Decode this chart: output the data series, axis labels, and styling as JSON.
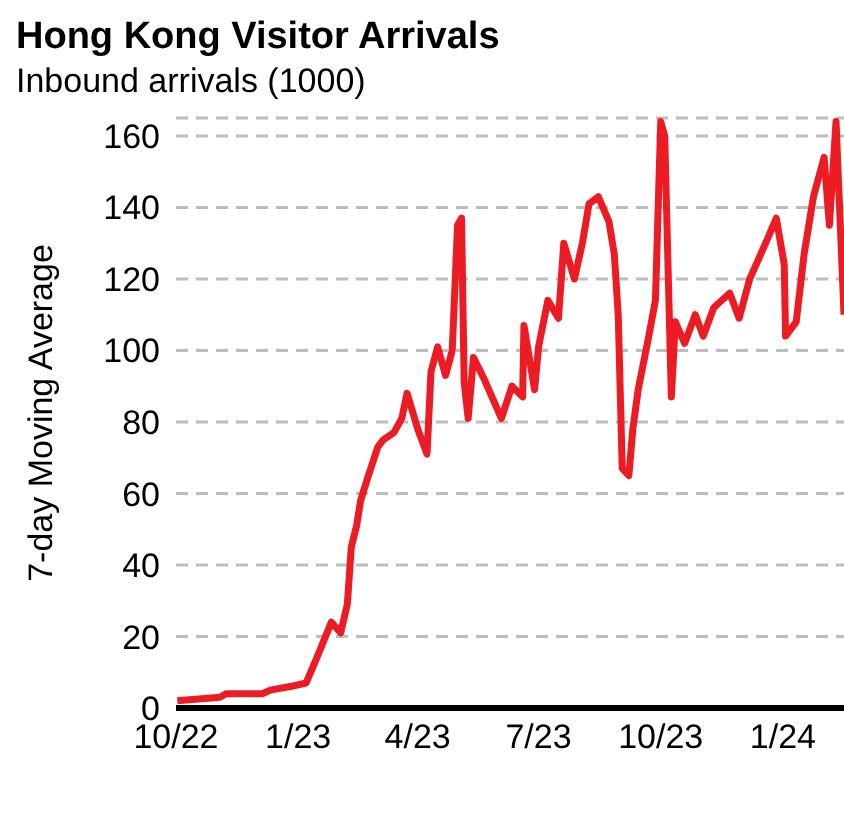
{
  "chart_data": {
    "type": "line",
    "title": "Hong Kong Visitor Arrivals",
    "subtitle": "Inbound arrivals (1000)",
    "ylabel": "7-day Moving Average",
    "x": [
      "2022-10-02",
      "2022-11-03",
      "2022-11-08",
      "2022-12-05",
      "2022-12-11",
      "2022-12-26",
      "2023-01-07",
      "2023-01-15",
      "2023-01-26",
      "2023-02-02",
      "2023-02-07",
      "2023-02-10",
      "2023-02-14",
      "2023-02-17",
      "2023-02-22",
      "2023-03-02",
      "2023-03-06",
      "2023-03-14",
      "2023-03-20",
      "2023-03-24",
      "2023-04-01",
      "2023-04-08",
      "2023-04-11",
      "2023-04-16",
      "2023-04-22",
      "2023-04-27",
      "2023-05-01",
      "2023-05-04",
      "2023-05-06",
      "2023-05-09",
      "2023-05-13",
      "2023-05-21",
      "2023-06-03",
      "2023-06-11",
      "2023-06-19",
      "2023-06-20",
      "2023-06-28",
      "2023-07-01",
      "2023-07-08",
      "2023-07-16",
      "2023-07-20",
      "2023-07-28",
      "2023-08-03",
      "2023-08-08",
      "2023-08-15",
      "2023-08-23",
      "2023-08-27",
      "2023-08-30",
      "2023-09-02",
      "2023-09-07",
      "2023-09-10",
      "2023-09-14",
      "2023-09-22",
      "2023-09-27",
      "2023-10-01",
      "2023-10-04",
      "2023-10-09",
      "2023-10-12",
      "2023-10-19",
      "2023-10-27",
      "2023-11-02",
      "2023-11-10",
      "2023-11-22",
      "2023-11-29",
      "2023-12-07",
      "2023-12-19",
      "2023-12-27",
      "2024-01-02",
      "2024-01-03",
      "2024-01-11",
      "2024-01-17",
      "2024-01-24",
      "2024-02-01",
      "2024-02-05",
      "2024-02-10",
      "2024-02-16"
    ],
    "series": [
      {
        "color": "#ed1c24",
        "values": [
          2,
          3,
          4,
          4,
          5,
          6,
          7,
          14,
          24,
          21,
          29,
          45,
          51,
          58,
          64,
          73,
          75,
          77,
          81,
          88,
          78,
          71,
          94,
          101,
          93,
          100,
          135,
          137,
          91,
          81,
          98,
          92,
          81,
          90,
          87,
          107,
          89,
          101,
          114,
          109,
          130,
          120,
          130,
          141,
          143,
          136,
          127,
          110,
          67,
          65,
          78,
          89,
          104,
          114,
          164,
          160,
          87,
          108,
          102,
          110,
          104,
          112,
          116,
          109,
          120,
          130,
          137,
          124,
          104,
          108,
          127,
          143,
          154,
          135,
          164,
          110
        ]
      }
    ],
    "xlim": [
      "2022-10-01",
      "2024-02-16"
    ],
    "xticks": [
      {
        "value": "2022-10-01",
        "label": "10/22"
      },
      {
        "value": "2023-01-01",
        "label": "1/23"
      },
      {
        "value": "2023-04-01",
        "label": "4/23"
      },
      {
        "value": "2023-07-01",
        "label": "7/23"
      },
      {
        "value": "2023-10-01",
        "label": "10/23"
      },
      {
        "value": "2024-01-01",
        "label": "1/24"
      }
    ],
    "ylim": [
      0,
      165
    ],
    "yticks": [
      0,
      20,
      40,
      60,
      80,
      100,
      120,
      140,
      160
    ],
    "grid": "y",
    "legend": false,
    "line_style": "solid",
    "marker": "none"
  }
}
